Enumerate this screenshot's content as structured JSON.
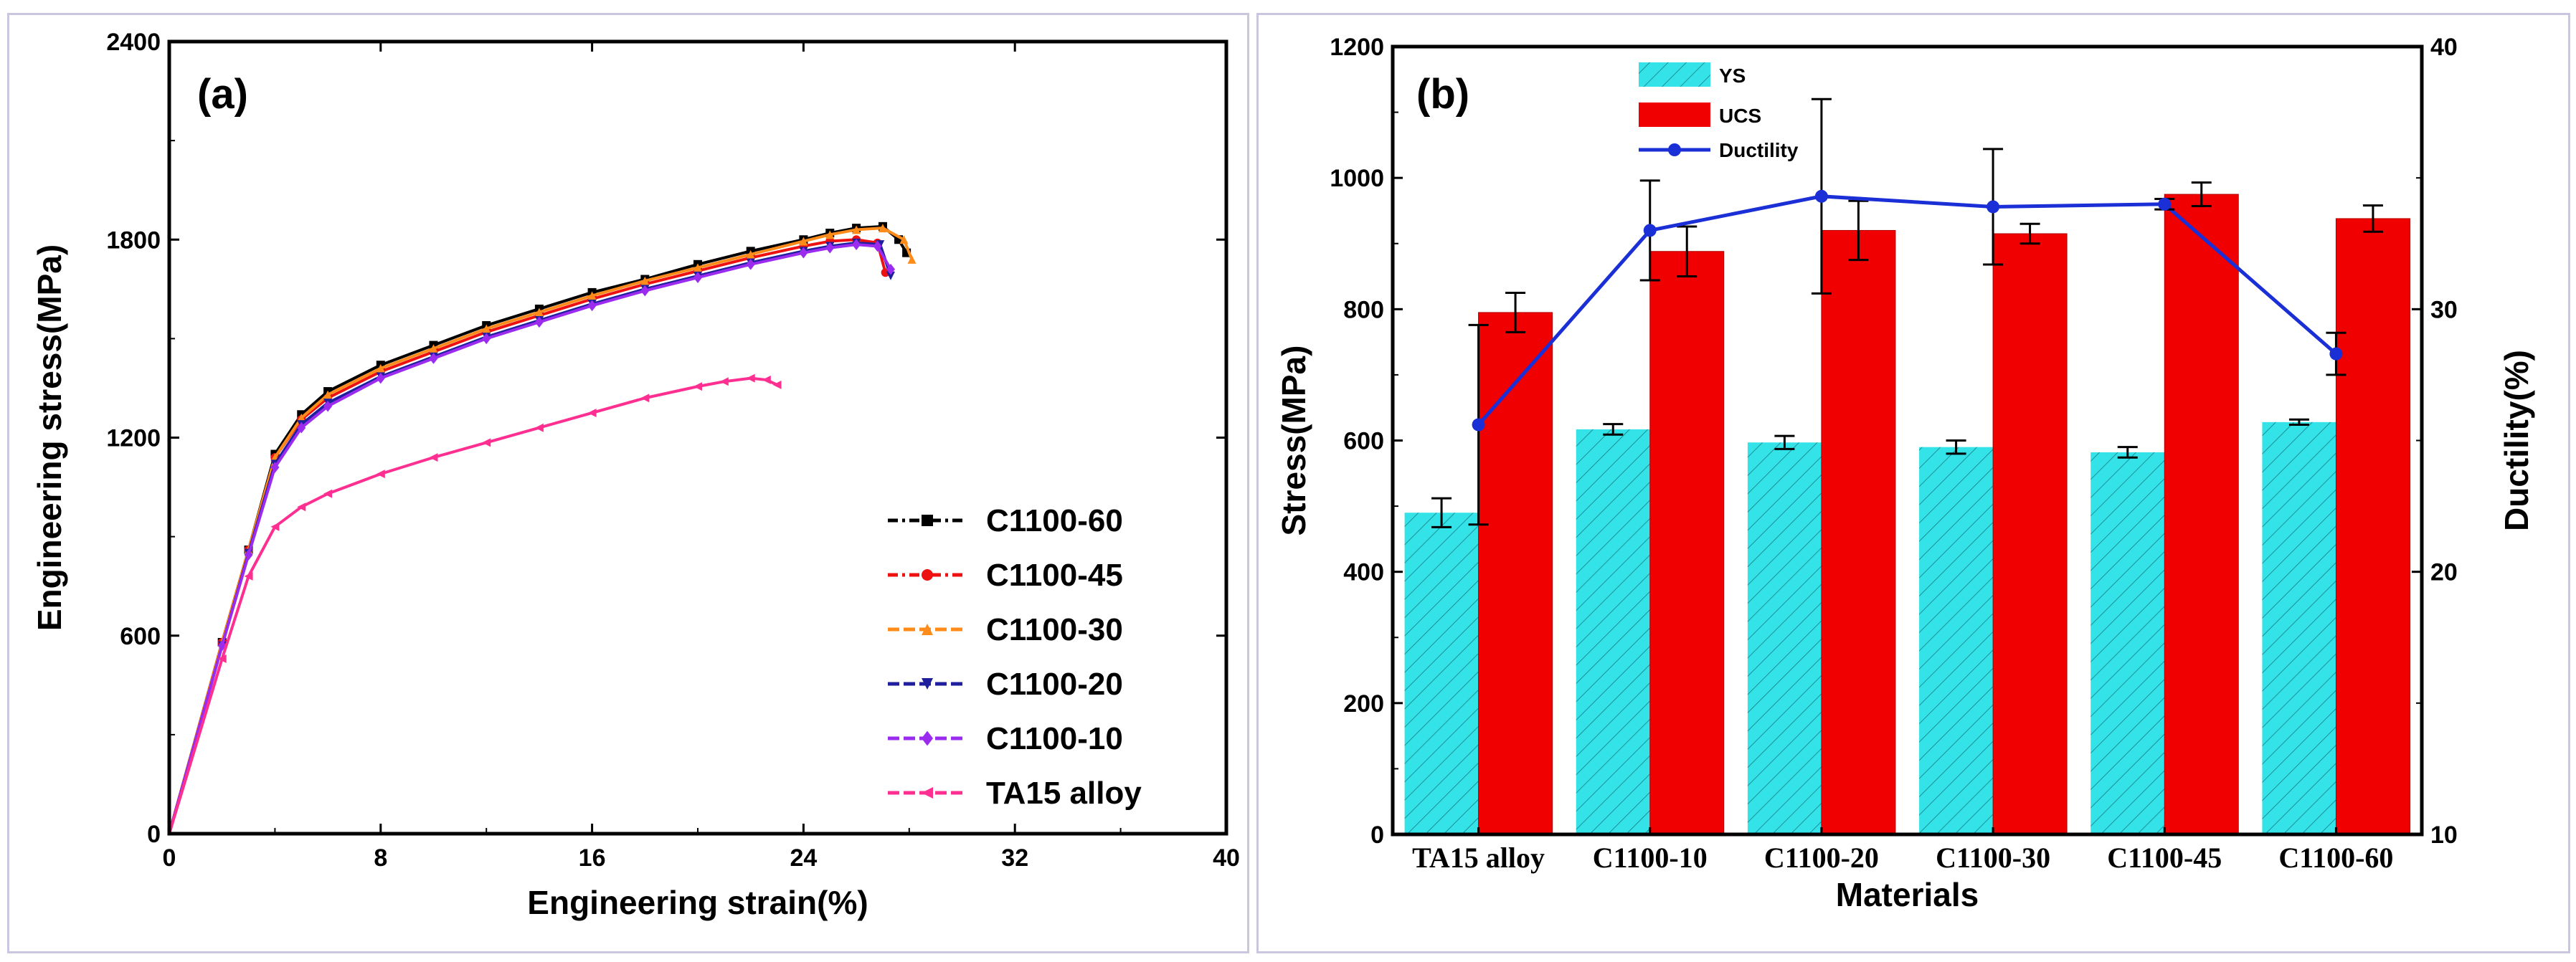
{
  "chart_data": [
    {
      "type": "line",
      "panel_label": "(a)",
      "xlabel": "Engineering strain(%)",
      "ylabel": "Engineering stress(MPa)",
      "xlim": [
        0,
        40
      ],
      "ylim": [
        0,
        2400
      ],
      "xticks": [
        0,
        8,
        16,
        24,
        32,
        40
      ],
      "yticks": [
        0,
        600,
        1200,
        1800,
        2400
      ],
      "legend_position": "bottom-right",
      "series": [
        {
          "name": "C1100-60",
          "color": "#000000",
          "marker": "square",
          "x": [
            0,
            2,
            3,
            4,
            5,
            6,
            8,
            10,
            12,
            14,
            16,
            18,
            20,
            22,
            24,
            25,
            26,
            27,
            27.6,
            27.9
          ],
          "y": [
            0,
            580,
            860,
            1150,
            1270,
            1340,
            1420,
            1480,
            1540,
            1590,
            1640,
            1680,
            1725,
            1765,
            1800,
            1820,
            1835,
            1840,
            1800,
            1760
          ]
        },
        {
          "name": "C1100-45",
          "color": "#ee1111",
          "marker": "circle",
          "x": [
            0,
            2,
            3,
            4,
            5,
            6,
            8,
            10,
            12,
            14,
            16,
            18,
            20,
            22,
            24,
            25,
            26,
            26.8,
            27.1
          ],
          "y": [
            0,
            580,
            860,
            1140,
            1255,
            1320,
            1400,
            1460,
            1520,
            1570,
            1620,
            1665,
            1705,
            1745,
            1780,
            1795,
            1800,
            1790,
            1700
          ]
        },
        {
          "name": "C1100-30",
          "color": "#ff8c1a",
          "marker": "triangle-up",
          "x": [
            0,
            2,
            3,
            4,
            5,
            6,
            8,
            10,
            12,
            14,
            16,
            18,
            20,
            22,
            24,
            25,
            26,
            27,
            27.8,
            28.1
          ],
          "y": [
            0,
            580,
            860,
            1140,
            1260,
            1330,
            1410,
            1470,
            1530,
            1580,
            1630,
            1675,
            1715,
            1755,
            1795,
            1815,
            1830,
            1835,
            1800,
            1740
          ]
        },
        {
          "name": "C1100-20",
          "color": "#1f1f9e",
          "marker": "triangle-down",
          "x": [
            0,
            2,
            3,
            4,
            5,
            6,
            8,
            10,
            12,
            14,
            16,
            18,
            20,
            22,
            24,
            25,
            26,
            26.9,
            27.3
          ],
          "y": [
            0,
            570,
            850,
            1120,
            1240,
            1305,
            1385,
            1445,
            1505,
            1555,
            1605,
            1650,
            1690,
            1730,
            1765,
            1780,
            1790,
            1785,
            1690
          ]
        },
        {
          "name": "C1100-10",
          "color": "#9a2bef",
          "marker": "diamond",
          "x": [
            0,
            2,
            3,
            4,
            5,
            6,
            8,
            10,
            12,
            14,
            16,
            18,
            20,
            22,
            24,
            25,
            26,
            26.8,
            27.3
          ],
          "y": [
            0,
            570,
            845,
            1110,
            1230,
            1295,
            1380,
            1440,
            1500,
            1550,
            1600,
            1645,
            1685,
            1725,
            1760,
            1775,
            1785,
            1780,
            1710
          ]
        },
        {
          "name": "TA15 alloy",
          "color": "#ff2f92",
          "marker": "triangle-left",
          "x": [
            0,
            2,
            3,
            4,
            5,
            6,
            8,
            10,
            12,
            14,
            16,
            18,
            20,
            21,
            22,
            22.6,
            23
          ],
          "y": [
            0,
            530,
            780,
            930,
            990,
            1030,
            1090,
            1140,
            1185,
            1230,
            1275,
            1320,
            1355,
            1370,
            1380,
            1375,
            1360
          ]
        }
      ]
    },
    {
      "type": "bar",
      "panel_label": "(b)",
      "xlabel": "Materials",
      "ylabel": "Stress(MPa)",
      "y2label": "Ductility(%)",
      "ylim": [
        0,
        1200
      ],
      "y2lim": [
        10,
        40
      ],
      "yticks": [
        0,
        200,
        400,
        600,
        800,
        1000,
        1200
      ],
      "y2ticks": [
        10,
        20,
        30,
        40
      ],
      "categories": [
        "TA15 alloy",
        "C1100-10",
        "C1100-20",
        "C1100-30",
        "C1100-45",
        "C1100-60"
      ],
      "legend_position": "top-left",
      "series": [
        {
          "name": "YS",
          "axis": "left",
          "kind": "bar",
          "color": "#33e3e8",
          "values": [
            490,
            617,
            597,
            590,
            582,
            628
          ],
          "errors": [
            22,
            8,
            10,
            10,
            8,
            4
          ]
        },
        {
          "name": "UCS",
          "axis": "left",
          "kind": "bar",
          "color": "#f00000",
          "values": [
            795,
            888,
            920,
            915,
            975,
            938
          ],
          "errors": [
            30,
            38,
            45,
            15,
            18,
            20
          ]
        },
        {
          "name": "Ductility",
          "axis": "right",
          "kind": "line",
          "color": "#1b2fd6",
          "values": [
            25.6,
            33.0,
            34.3,
            33.9,
            34.0,
            28.3
          ],
          "errors": [
            3.8,
            1.9,
            3.7,
            2.2,
            0.2,
            0.8
          ]
        }
      ]
    }
  ]
}
